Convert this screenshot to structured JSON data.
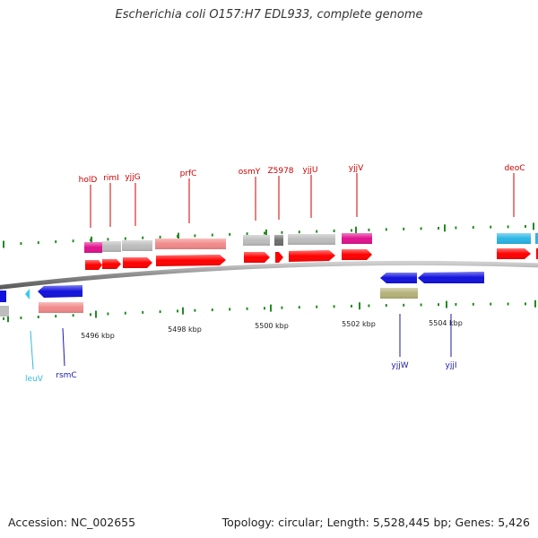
{
  "title": "Escherichia coli O157:H7 EDL933, complete genome",
  "footer": {
    "accession": "Accession: NC_002655",
    "topology": "Topology: circular; Length: 5,528,445 bp; Genes: 5,426"
  },
  "colors": {
    "forward_cds": "#ff0000",
    "reverse_cds": "#1010e0",
    "label_forward": "#cc0000",
    "label_reverse": "#1a1aa8",
    "label_rna": "#33bbdd",
    "backbone": "#999999",
    "tick": "#228b22"
  },
  "scale_labels": [
    "5496 kbp",
    "5498 kbp",
    "5500 kbp",
    "5502 kbp",
    "5504 kbp"
  ],
  "genes_above": [
    {
      "name": "holD",
      "color": "#cc0000"
    },
    {
      "name": "rimI",
      "color": "#cc0000"
    },
    {
      "name": "yjjG",
      "color": "#cc0000"
    },
    {
      "name": "prfC",
      "color": "#cc0000"
    },
    {
      "name": "osmY",
      "color": "#cc0000"
    },
    {
      "name": "Z5978",
      "color": "#cc0000"
    },
    {
      "name": "yjjU",
      "color": "#cc0000"
    },
    {
      "name": "yjjV",
      "color": "#cc0000"
    },
    {
      "name": "deoC",
      "color": "#cc0000"
    }
  ],
  "genes_below": [
    {
      "name": "leuV",
      "color": "#33bbdd"
    },
    {
      "name": "rsmC",
      "color": "#1a1aa8"
    },
    {
      "name": "yjjW",
      "color": "#1a1aa8"
    },
    {
      "name": "yjjI",
      "color": "#1a1aa8"
    }
  ]
}
